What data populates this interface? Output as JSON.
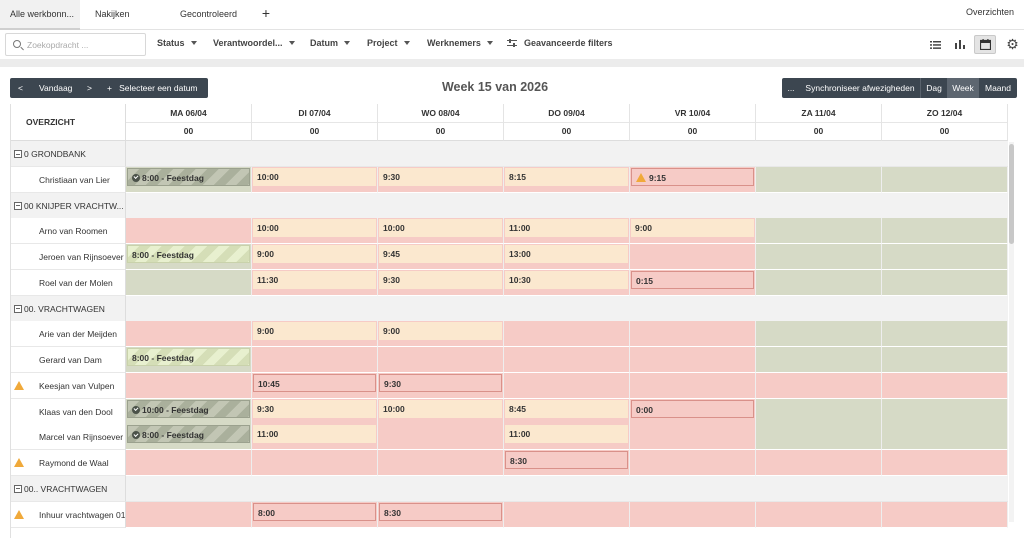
{
  "tabs": [
    {
      "label": "Alle werkbonn...",
      "active": true
    },
    {
      "label": "Nakijken",
      "active": false
    },
    {
      "label": "Gecontroleerd",
      "active": false
    }
  ],
  "add_tab_label": "+",
  "overzichten_label": "Overzichten",
  "search": {
    "placeholder": "Zoekopdracht ..."
  },
  "filters": [
    "Status",
    "Verantwoordel...",
    "Datum",
    "Project",
    "Werknemers"
  ],
  "advanced_filters_label": "Geavanceerde filters",
  "views": [
    {
      "icon": "list-view-icon",
      "active": false
    },
    {
      "icon": "chart-view-icon",
      "active": false
    },
    {
      "icon": "calendar-view-icon",
      "active": true
    }
  ],
  "nav": {
    "prev": "<",
    "today": "Vandaag",
    "next": ">",
    "plus": "+",
    "select_date": "Selecteer een datum"
  },
  "week_title": "Week 15 van 2026",
  "right_toolbar": {
    "more": "...",
    "sync": "Synchroniseer afwezigheden",
    "dag": "Dag",
    "week": "Week",
    "maand": "Maand",
    "active": "week"
  },
  "overview_label": "OVERZICHT",
  "days": [
    {
      "name": "MA 06/04",
      "total": "00"
    },
    {
      "name": "DI 07/04",
      "total": "00"
    },
    {
      "name": "WO 08/04",
      "total": "00"
    },
    {
      "name": "DO 09/04",
      "total": "00"
    },
    {
      "name": "VR 10/04",
      "total": "00"
    },
    {
      "name": "ZA 11/04",
      "total": "00"
    },
    {
      "name": "ZO 12/04",
      "total": "00"
    }
  ],
  "rows": [
    {
      "type": "group",
      "label": "0 GRONDBANK"
    },
    {
      "type": "person",
      "label": "Christiaan van Lier",
      "warn": false,
      "bg": [
        "olive",
        "red",
        "red",
        "red",
        "red",
        "olive",
        "olive"
      ],
      "cells": [
        {
          "t": "8:00 - Feestdag",
          "s": "feest-dark",
          "c": true
        },
        {
          "t": "10:00",
          "s": "cream"
        },
        {
          "t": "9:30",
          "s": "cream"
        },
        {
          "t": "8:15",
          "s": "cream"
        },
        {
          "t": "9:15",
          "s": "warn",
          "w": true
        },
        null,
        null
      ]
    },
    {
      "type": "group",
      "label": "00 KNIJPER VRACHTW..."
    },
    {
      "type": "person",
      "label": "Arno van Roomen",
      "warn": false,
      "bg": [
        "red",
        "red",
        "red",
        "red",
        "red",
        "olive",
        "olive"
      ],
      "cells": [
        null,
        {
          "t": "10:00",
          "s": "cream"
        },
        {
          "t": "10:00",
          "s": "cream"
        },
        {
          "t": "11:00",
          "s": "cream"
        },
        {
          "t": "9:00",
          "s": "cream"
        },
        null,
        null
      ]
    },
    {
      "type": "person",
      "label": "Jeroen van Rijnsoever",
      "warn": false,
      "bg": [
        "olive",
        "red",
        "red",
        "red",
        "red",
        "olive",
        "olive"
      ],
      "cells": [
        {
          "t": "8:00 - Feestdag",
          "s": "feest-light"
        },
        {
          "t": "9:00",
          "s": "cream"
        },
        {
          "t": "9:45",
          "s": "cream"
        },
        {
          "t": "13:00",
          "s": "cream"
        },
        null,
        null,
        null
      ]
    },
    {
      "type": "person",
      "label": "Roel van der Molen",
      "warn": false,
      "bg": [
        "olive",
        "red",
        "red",
        "red",
        "red",
        "olive",
        "olive"
      ],
      "cells": [
        null,
        {
          "t": "11:30",
          "s": "cream"
        },
        {
          "t": "9:30",
          "s": "cream"
        },
        {
          "t": "10:30",
          "s": "cream"
        },
        {
          "t": "0:15",
          "s": "cream-red"
        },
        null,
        null
      ]
    },
    {
      "type": "group",
      "label": "00. VRACHTWAGEN"
    },
    {
      "type": "person",
      "label": "Arie van der Meijden",
      "warn": false,
      "bg": [
        "red",
        "red",
        "red",
        "red",
        "red",
        "olive",
        "olive"
      ],
      "cells": [
        null,
        {
          "t": "9:00",
          "s": "cream"
        },
        {
          "t": "9:00",
          "s": "cream"
        },
        null,
        null,
        null,
        null
      ]
    },
    {
      "type": "person",
      "label": "Gerard van Dam",
      "warn": false,
      "bg": [
        "olive",
        "red",
        "red",
        "red",
        "red",
        "olive",
        "olive"
      ],
      "cells": [
        {
          "t": "8:00 - Feestdag",
          "s": "feest-light"
        },
        null,
        null,
        null,
        null,
        null,
        null
      ]
    },
    {
      "type": "person",
      "label": "Keesjan van Vulpen",
      "warn": true,
      "bg": [
        "red",
        "red",
        "red",
        "red",
        "red",
        "red",
        "red"
      ],
      "cells": [
        null,
        {
          "t": "10:45",
          "s": "cream-red"
        },
        {
          "t": "9:30",
          "s": "cream-red"
        },
        null,
        null,
        null,
        null
      ]
    },
    {
      "type": "person",
      "label": "Klaas van den Dool",
      "warn": false,
      "bg": [
        "olive",
        "red",
        "red",
        "red",
        "red",
        "olive",
        "olive"
      ],
      "cells": [
        {
          "t": "10:00 - Feestdag",
          "s": "feest-dark",
          "c": true
        },
        {
          "t": "9:30",
          "s": "cream"
        },
        {
          "t": "10:00",
          "s": "cream"
        },
        {
          "t": "8:45",
          "s": "cream"
        },
        {
          "t": "0:00",
          "s": "cream-red"
        },
        null,
        null
      ]
    },
    {
      "type": "person",
      "label": "Marcel van Rijnsoever",
      "warn": false,
      "bg": [
        "olive",
        "red",
        "red",
        "red",
        "red",
        "olive",
        "olive"
      ],
      "cells": [
        {
          "t": "8:00 - Feestdag",
          "s": "feest-dark",
          "c": true
        },
        {
          "t": "11:00",
          "s": "cream"
        },
        null,
        {
          "t": "11:00",
          "s": "cream"
        },
        null,
        null,
        null
      ]
    },
    {
      "type": "person",
      "label": "Raymond de Waal",
      "warn": true,
      "bg": [
        "red",
        "red",
        "red",
        "red",
        "red",
        "red",
        "red"
      ],
      "cells": [
        null,
        null,
        null,
        {
          "t": "8:30",
          "s": "cream-red"
        },
        null,
        null,
        null
      ]
    },
    {
      "type": "group",
      "label": "00.. VRACHTWAGEN"
    },
    {
      "type": "person",
      "label": "Inhuur vrachtwagen 01",
      "warn": true,
      "bg": [
        "red",
        "red",
        "red",
        "red",
        "red",
        "red",
        "red"
      ],
      "cells": [
        null,
        {
          "t": "8:00",
          "s": "cream-red"
        },
        {
          "t": "8:30",
          "s": "cream-red"
        },
        null,
        null,
        null,
        null
      ]
    }
  ]
}
